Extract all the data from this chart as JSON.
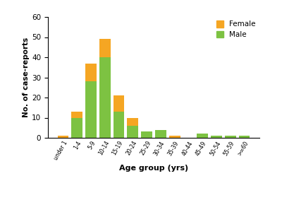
{
  "categories": [
    "under 1",
    "1-4",
    "5-9",
    "10-14",
    "15-19",
    "20-24",
    "25-29",
    "30-34",
    "35-39",
    "40-44",
    "45-49",
    "50-54",
    "55-59",
    ">=60"
  ],
  "male": [
    0,
    10,
    28,
    40,
    13,
    6,
    3,
    4,
    0,
    0,
    2,
    1,
    1,
    1
  ],
  "female": [
    1,
    3,
    9,
    9,
    8,
    4,
    0,
    0,
    1,
    0,
    0,
    0,
    0,
    0
  ],
  "male_color": "#7dc242",
  "female_color": "#f5a623",
  "xlabel": "Age group (yrs)",
  "ylabel": "No. of case-reports",
  "ylim": [
    0,
    60
  ],
  "yticks": [
    0,
    10,
    20,
    30,
    40,
    50,
    60
  ],
  "legend_female": "Female",
  "legend_male": "Male",
  "fig_width": 4.0,
  "fig_height": 3.0,
  "dpi": 100
}
